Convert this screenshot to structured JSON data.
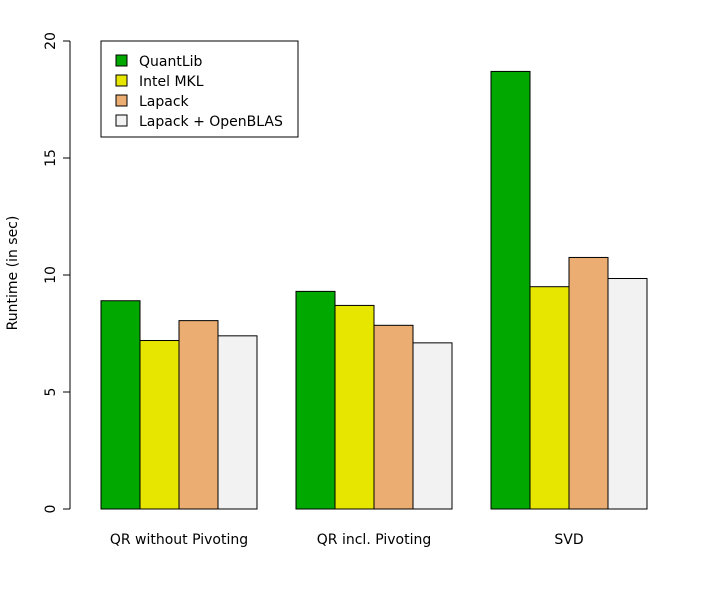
{
  "chart_data": {
    "type": "bar",
    "ylabel": "Runtime (in sec)",
    "xlabel": "",
    "ylim": [
      0,
      20
    ],
    "yticks": [
      0,
      5,
      10,
      15,
      20
    ],
    "grid": false,
    "legend_position": "top-left",
    "categories": [
      "QR without Pivoting",
      "QR incl. Pivoting",
      "SVD"
    ],
    "series": [
      {
        "name": "QuantLib",
        "color": "#00a800",
        "values": [
          8.9,
          9.3,
          18.7
        ]
      },
      {
        "name": "Intel MKL",
        "color": "#e6e600",
        "values": [
          7.2,
          8.7,
          9.5
        ]
      },
      {
        "name": "Lapack",
        "color": "#ebad72",
        "values": [
          8.05,
          7.85,
          10.75
        ]
      },
      {
        "name": "Lapack + OpenBLAS",
        "color": "#f2f2f2",
        "values": [
          7.4,
          7.1,
          9.85
        ]
      }
    ]
  }
}
